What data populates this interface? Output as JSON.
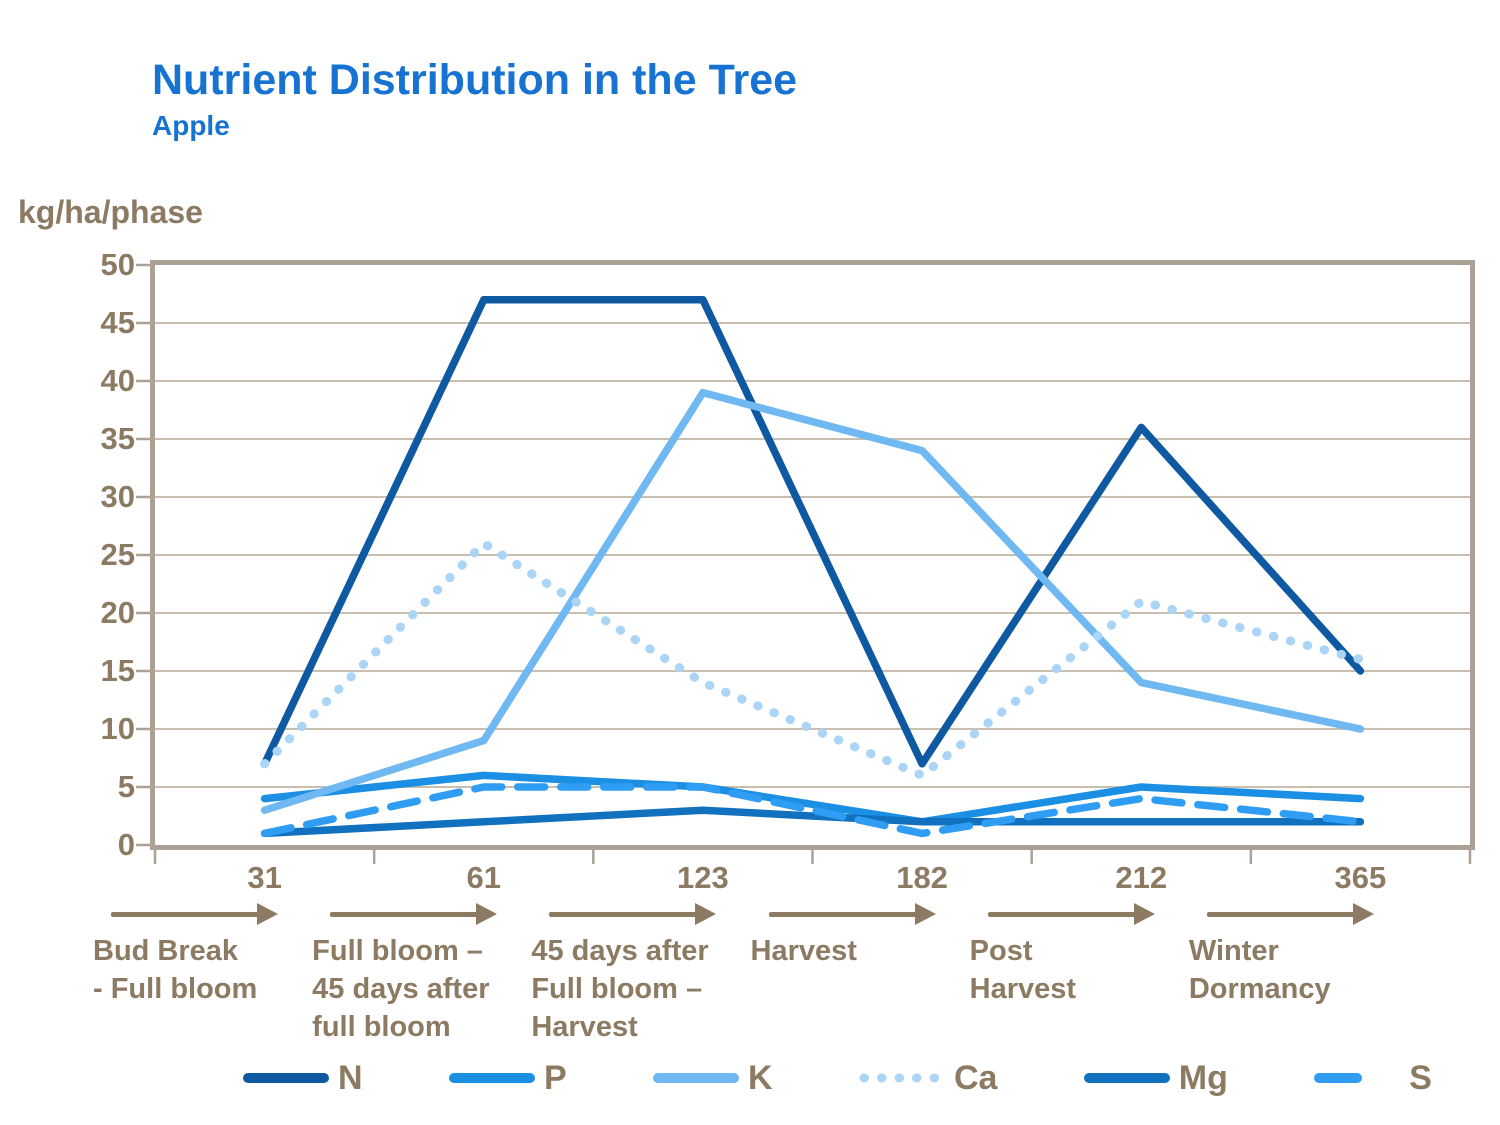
{
  "header": {
    "title": "Nutrient Distribution in the Tree",
    "subtitle": "Apple"
  },
  "chart_data": {
    "type": "line",
    "title": "Nutrient Distribution in the Tree",
    "subtitle": "Apple",
    "ylabel": "kg/ha/phase",
    "xlabel": "",
    "ylim": [
      0,
      50
    ],
    "y_ticks": [
      0,
      5,
      10,
      15,
      20,
      25,
      30,
      35,
      40,
      45,
      50
    ],
    "x": [
      31,
      61,
      123,
      182,
      212,
      365
    ],
    "categories": [
      "31",
      "61",
      "123",
      "182",
      "212",
      "365"
    ],
    "grid": true,
    "legend_position": "bottom",
    "series": [
      {
        "name": "N",
        "color": "#0E59A2",
        "style": "solid",
        "values": [
          7,
          47,
          47,
          7,
          36,
          15
        ]
      },
      {
        "name": "P",
        "color": "#1A8FE3",
        "style": "solid",
        "values": [
          4,
          6,
          5,
          2,
          5,
          4
        ]
      },
      {
        "name": "K",
        "color": "#6FB8F2",
        "style": "solid",
        "values": [
          3,
          9,
          39,
          34,
          14,
          10
        ]
      },
      {
        "name": "Ca",
        "color": "#ABD5F6",
        "style": "dotted",
        "values": [
          7,
          26,
          14,
          6,
          21,
          16
        ]
      },
      {
        "name": "Mg",
        "color": "#1171BF",
        "style": "solid",
        "values": [
          1,
          2,
          3,
          2,
          2,
          2
        ]
      },
      {
        "name": "S",
        "color": "#2E9DF3",
        "style": "dashed",
        "values": [
          1,
          5,
          5,
          1,
          4,
          2
        ]
      }
    ],
    "phases": [
      {
        "tick": "31",
        "label_lines": [
          "Bud Break",
          "- Full bloom"
        ]
      },
      {
        "tick": "61",
        "label_lines": [
          "Full bloom –",
          "45 days after",
          "full bloom"
        ]
      },
      {
        "tick": "123",
        "label_lines": [
          "45 days after",
          "Full bloom –",
          "Harvest"
        ]
      },
      {
        "tick": "182",
        "label_lines": [
          "Harvest"
        ]
      },
      {
        "tick": "212",
        "label_lines": [
          "Post",
          "Harvest"
        ]
      },
      {
        "tick": "365",
        "label_lines": [
          "Winter",
          "Dormancy"
        ]
      }
    ],
    "colors": {
      "title": "#1673D2",
      "text": "#8C7A63",
      "grid": "#C9BFB1",
      "border": "#ACA195"
    }
  }
}
